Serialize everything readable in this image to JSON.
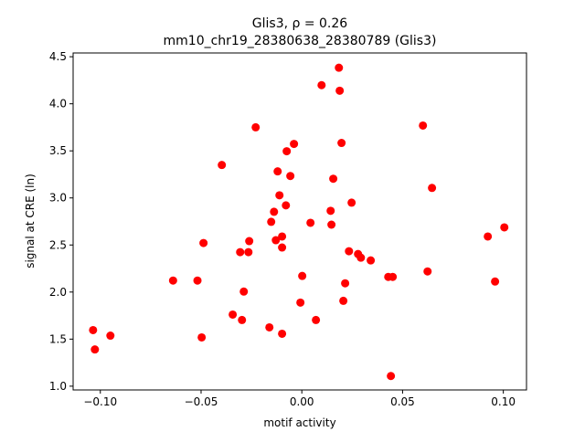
{
  "chart_data": {
    "type": "scatter",
    "title_line1": "Glis3, ρ = 0.26",
    "title_line2": "mm10_chr19_28380638_28380789 (Glis3)",
    "xlabel": "motif activity",
    "ylabel": "signal at CRE (ln)",
    "xlim": [
      -0.1135,
      0.1115
    ],
    "ylim": [
      0.96,
      4.54
    ],
    "xticks": [
      -0.1,
      -0.05,
      0.0,
      0.05,
      0.1
    ],
    "xtick_labels": [
      "−0.10",
      "−0.05",
      "0.00",
      "0.05",
      "0.10"
    ],
    "yticks": [
      1.0,
      1.5,
      2.0,
      2.5,
      3.0,
      3.5,
      4.0,
      4.5
    ],
    "ytick_labels": [
      "1.0",
      "1.5",
      "2.0",
      "2.5",
      "3.0",
      "3.5",
      "4.0",
      "4.5"
    ],
    "grid": false,
    "marker_color": "#ff0000",
    "points": [
      [
        -0.1036,
        1.596
      ],
      [
        -0.1027,
        1.39
      ],
      [
        -0.095,
        1.537
      ],
      [
        -0.0639,
        2.122
      ],
      [
        -0.0518,
        2.122
      ],
      [
        -0.0497,
        1.518
      ],
      [
        -0.0488,
        2.521
      ],
      [
        -0.0397,
        3.35
      ],
      [
        -0.0343,
        1.761
      ],
      [
        -0.0306,
        2.424
      ],
      [
        -0.0297,
        1.703
      ],
      [
        -0.0288,
        2.005
      ],
      [
        -0.0265,
        2.424
      ],
      [
        -0.0261,
        2.541
      ],
      [
        -0.0229,
        3.75
      ],
      [
        -0.0161,
        1.625
      ],
      [
        -0.0152,
        2.746
      ],
      [
        -0.0138,
        2.853
      ],
      [
        -0.0129,
        2.551
      ],
      [
        -0.012,
        3.282
      ],
      [
        -0.0111,
        3.028
      ],
      [
        -0.0098,
        2.59
      ],
      [
        -0.0098,
        2.473
      ],
      [
        -0.0098,
        1.557
      ],
      [
        -0.0079,
        2.921
      ],
      [
        -0.0075,
        3.496
      ],
      [
        -0.0057,
        3.233
      ],
      [
        -0.0039,
        3.574
      ],
      [
        -0.0007,
        1.888
      ],
      [
        0.0002,
        2.171
      ],
      [
        0.0043,
        2.736
      ],
      [
        0.007,
        1.703
      ],
      [
        0.0098,
        4.198
      ],
      [
        0.0143,
        2.863
      ],
      [
        0.0147,
        2.716
      ],
      [
        0.0156,
        3.204
      ],
      [
        0.0184,
        4.383
      ],
      [
        0.0188,
        4.139
      ],
      [
        0.0197,
        3.584
      ],
      [
        0.0206,
        1.907
      ],
      [
        0.0215,
        2.093
      ],
      [
        0.0234,
        2.434
      ],
      [
        0.0247,
        2.95
      ],
      [
        0.0279,
        2.404
      ],
      [
        0.0293,
        2.365
      ],
      [
        0.0342,
        2.336
      ],
      [
        0.0429,
        2.161
      ],
      [
        0.0451,
        2.161
      ],
      [
        0.0442,
        1.108
      ],
      [
        0.0601,
        3.769
      ],
      [
        0.0624,
        2.219
      ],
      [
        0.0646,
        3.106
      ],
      [
        0.0923,
        2.59
      ],
      [
        0.0959,
        2.112
      ],
      [
        0.1005,
        2.687
      ]
    ]
  }
}
